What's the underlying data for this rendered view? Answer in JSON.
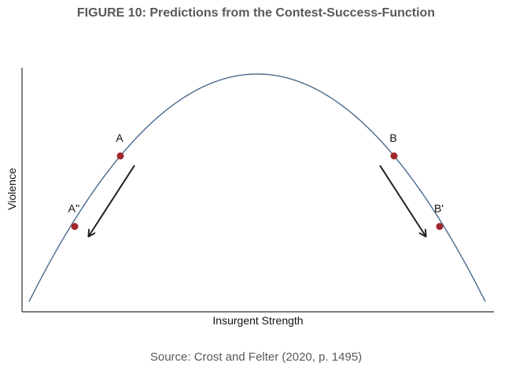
{
  "figure": {
    "title": "FIGURE 10: Predictions from the Contest-Success-Function",
    "source": "Source: Crost and Felter (2020, p. 1495)"
  },
  "chart_data": {
    "type": "line",
    "title": "",
    "xlabel": "Insurgent Strength",
    "ylabel": "Violence",
    "xlim": [
      0,
      1
    ],
    "ylim": [
      0,
      1
    ],
    "ticks": "none",
    "grid": false,
    "series": [
      {
        "name": "",
        "function": "concave curve (inverted U)",
        "color": "#4a6a8a"
      }
    ],
    "points": [
      {
        "label": "A",
        "x": 0.2,
        "y": 0.64,
        "color": "#a0282d"
      },
      {
        "label": "A''",
        "x": 0.1,
        "y": 0.33,
        "color": "#a0282d"
      },
      {
        "label": "B",
        "x": 0.8,
        "y": 0.64,
        "color": "#a0282d"
      },
      {
        "label": "B'",
        "x": 0.9,
        "y": 0.33,
        "color": "#a0282d"
      }
    ],
    "arrows": [
      {
        "from": "A",
        "to": "A''"
      },
      {
        "from": "B",
        "to": "B'"
      }
    ]
  }
}
